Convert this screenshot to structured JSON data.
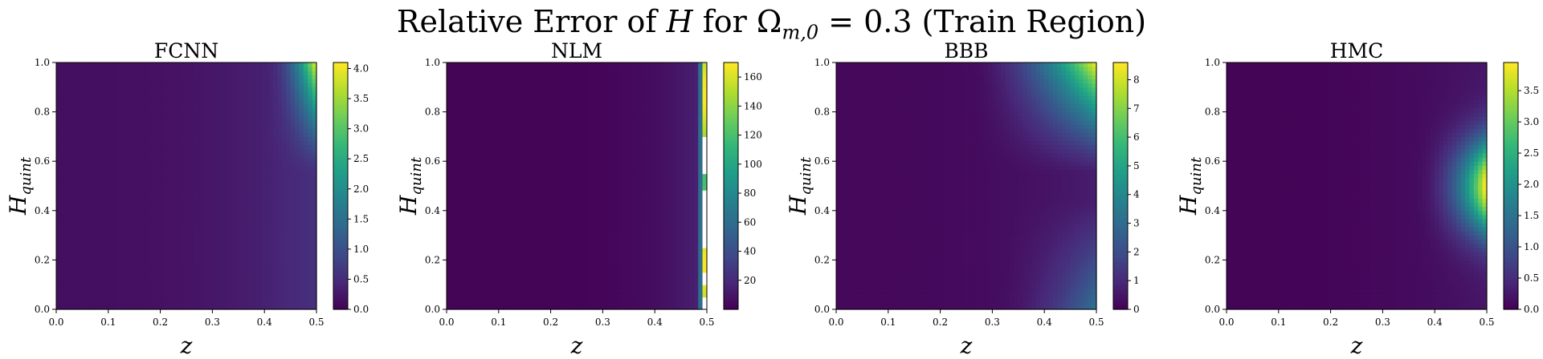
{
  "figure": {
    "title": {
      "prefix": "Relative Error of ",
      "symbol": "H",
      "middle": " for ",
      "omega": "Ω",
      "omega_sub": "m,0",
      "suffix": " = 0.3 (Train Region)"
    }
  },
  "colormap": "viridis",
  "chart_data": [
    {
      "type": "heatmap",
      "title": "FCNN",
      "xlabel": "z",
      "ylabel": "H_quint",
      "ylabel_parts": {
        "base": "H",
        "sub": "quint"
      },
      "xlim": [
        0.0,
        0.5
      ],
      "ylim": [
        0.0,
        1.0
      ],
      "xticks": [
        "0.0",
        "0.1",
        "0.2",
        "0.3",
        "0.4",
        "0.5"
      ],
      "yticks": [
        "0.0",
        "0.2",
        "0.4",
        "0.6",
        "0.8",
        "1.0"
      ],
      "colorbar": {
        "min": 0.0,
        "max": 4.1,
        "ticks": [
          "0.0",
          "0.5",
          "1.0",
          "1.5",
          "2.0",
          "2.5",
          "3.0",
          "3.5",
          "4.0"
        ]
      },
      "pattern": "fcnn",
      "notes": "Near zero everywhere; error rises toward z=0.5 and high H_quint, peaking ~4.1 at top-right corner"
    },
    {
      "type": "heatmap",
      "title": "NLM",
      "xlabel": "z",
      "ylabel": "H_quint",
      "ylabel_parts": {
        "base": "H",
        "sub": "quint"
      },
      "xlim": [
        0.0,
        0.5
      ],
      "ylim": [
        0.0,
        1.0
      ],
      "xticks": [
        "0.0",
        "0.1",
        "0.2",
        "0.3",
        "0.4",
        "0.5"
      ],
      "yticks": [
        "0.0",
        "0.2",
        "0.4",
        "0.6",
        "0.8",
        "1.0"
      ],
      "colorbar": {
        "min": 0.0,
        "max": 170,
        "ticks": [
          "20",
          "40",
          "60",
          "80",
          "100",
          "120",
          "140",
          "160"
        ]
      },
      "pattern": "nlm",
      "notes": "Near zero except a thin strip at z≈0.49–0.5 reaching ~170; some blank (undefined) cells"
    },
    {
      "type": "heatmap",
      "title": "BBB",
      "xlabel": "z",
      "ylabel": "H_quint",
      "ylabel_parts": {
        "base": "H",
        "sub": "quint"
      },
      "xlim": [
        0.0,
        0.5
      ],
      "ylim": [
        0.0,
        1.0
      ],
      "xticks": [
        "0.0",
        "0.1",
        "0.2",
        "0.3",
        "0.4",
        "0.5"
      ],
      "yticks": [
        "0.0",
        "0.2",
        "0.4",
        "0.6",
        "0.8",
        "1.0"
      ],
      "colorbar": {
        "min": 0.0,
        "max": 8.6,
        "ticks": [
          "0",
          "1",
          "2",
          "3",
          "4",
          "5",
          "6",
          "7",
          "8"
        ]
      },
      "pattern": "bbb",
      "notes": "Error grows toward high z; max ~8.5 at top-right, secondary rise at bottom-right"
    },
    {
      "type": "heatmap",
      "title": "HMC",
      "xlabel": "z",
      "ylabel": "H_quint",
      "ylabel_parts": {
        "base": "H",
        "sub": "quint"
      },
      "xlim": [
        0.0,
        0.5
      ],
      "ylim": [
        0.0,
        1.0
      ],
      "xticks": [
        "0.0",
        "0.1",
        "0.2",
        "0.3",
        "0.4",
        "0.5"
      ],
      "yticks": [
        "0.0",
        "0.2",
        "0.4",
        "0.6",
        "0.8",
        "1.0"
      ],
      "colorbar": {
        "min": 0.0,
        "max": 3.95,
        "ticks": [
          "0.0",
          "0.5",
          "1.0",
          "1.5",
          "2.0",
          "2.5",
          "3.0",
          "3.5"
        ]
      },
      "pattern": "hmc",
      "notes": "Error concentrated along z≈0.5 for mid H_quint (~0.4–0.65), peaking ~3.9"
    }
  ]
}
